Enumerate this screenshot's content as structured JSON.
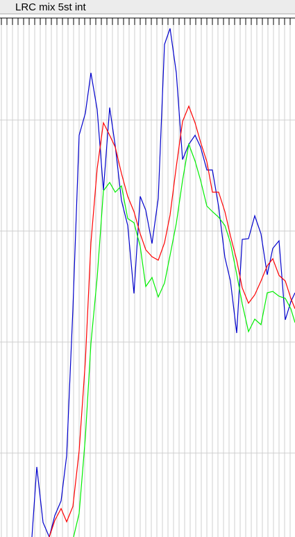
{
  "chart_data": {
    "type": "line",
    "title": "LRC mix 5st int",
    "xlim": [
      0,
      425
    ],
    "ylim": [
      0,
      750
    ],
    "xticks": [
      2,
      10,
      18,
      26,
      34,
      42,
      50,
      58,
      66,
      74,
      82,
      90,
      98,
      106,
      114,
      122,
      130,
      138,
      146,
      154,
      162,
      170,
      178,
      186,
      194,
      202,
      210,
      218,
      226,
      234,
      242,
      250,
      258,
      266,
      274,
      282,
      290,
      298,
      306,
      314,
      322,
      330,
      338,
      346,
      354,
      362,
      370,
      378,
      386,
      394,
      402,
      410,
      418
    ],
    "yticks": [
      121,
      281,
      441,
      601
    ],
    "grid": true,
    "series": [
      {
        "color": "#0000cc",
        "x": [
          46,
          53,
          62,
          71,
          79,
          88,
          96,
          105,
          114,
          123,
          131,
          140,
          149,
          158,
          166,
          175,
          184,
          193,
          202,
          210,
          219,
          228,
          237,
          245,
          254,
          263,
          272,
          281,
          289,
          298,
          306,
          315,
          324,
          332,
          341,
          349,
          358,
          367,
          376,
          385,
          393,
          402,
          411,
          419,
          425
        ],
        "values": [
          0,
          101,
          21,
          0,
          31,
          52,
          117,
          328,
          579,
          611,
          669,
          616,
          500,
          619,
          564,
          485,
          449,
          351,
          491,
          471,
          423,
          488,
          710,
          733,
          669,
          544,
          566,
          579,
          562,
          529,
          529,
          476,
          403,
          369,
          294,
          429,
          430,
          463,
          437,
          378,
          416,
          427,
          313,
          339,
          352
        ]
      },
      {
        "color": "#ff0000",
        "x": [
          71,
          79,
          88,
          96,
          105,
          114,
          123,
          131,
          140,
          149,
          158,
          166,
          175,
          184,
          193,
          202,
          210,
          219,
          228,
          237,
          245,
          254,
          263,
          272,
          281,
          289,
          298,
          306,
          315,
          324,
          332,
          341,
          349,
          358,
          367,
          376,
          385,
          393,
          402,
          411,
          419,
          425
        ],
        "values": [
          0,
          24,
          41,
          22,
          44,
          124,
          254,
          424,
          531,
          597,
          579,
          562,
          524,
          491,
          469,
          437,
          414,
          404,
          399,
          424,
          464,
          534,
          599,
          621,
          597,
          569,
          541,
          497,
          497,
          469,
          434,
          399,
          359,
          337,
          349,
          369,
          391,
          401,
          377,
          369,
          344,
          329
        ]
      },
      {
        "color": "#00ee00",
        "x": [
          106,
          114,
          123,
          131,
          140,
          149,
          158,
          166,
          175,
          184,
          193,
          202,
          210,
          219,
          228,
          237,
          245,
          254,
          263,
          272,
          281,
          289,
          298,
          306,
          315,
          324,
          332,
          341,
          349,
          358,
          367,
          376,
          385,
          393,
          402,
          411,
          419,
          425
        ],
        "values": [
          0,
          34,
          144,
          279,
          374,
          499,
          511,
          497,
          506,
          459,
          453,
          419,
          361,
          374,
          346,
          366,
          406,
          452,
          514,
          566,
          542,
          514,
          477,
          469,
          461,
          449,
          424,
          379,
          336,
          296,
          314,
          306,
          352,
          354,
          347,
          344,
          329,
          309
        ]
      }
    ]
  }
}
